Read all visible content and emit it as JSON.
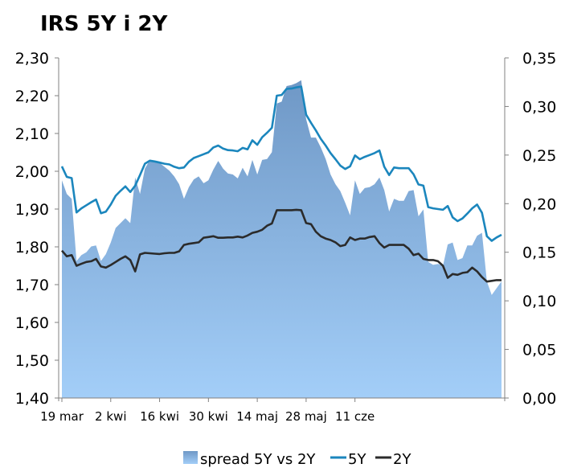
{
  "chart_data": {
    "type": "line",
    "title": "IRS 5Y i 2Y",
    "colors": {
      "spread_top": "#6f98c6",
      "spread_bottom": "#a3cef8",
      "s5y": "#1b86bd",
      "s2y": "#2b2b2b",
      "axis": "#808080"
    },
    "x_ticks": [
      {
        "i": 0,
        "label": "19 mar"
      },
      {
        "i": 10,
        "label": "2 kwi"
      },
      {
        "i": 20,
        "label": "16 kwi"
      },
      {
        "i": 30,
        "label": "30 kwi"
      },
      {
        "i": 40,
        "label": "14 maj"
      },
      {
        "i": 50,
        "label": "28 maj"
      },
      {
        "i": 60,
        "label": "11 cze"
      }
    ],
    "y_left": {
      "min": 1.4,
      "max": 2.3,
      "ticks": [
        "1,40",
        "1,50",
        "1,60",
        "1,70",
        "1,80",
        "1,90",
        "2,00",
        "2,10",
        "2,20",
        "2,30"
      ]
    },
    "y_right": {
      "min": 0.0,
      "max": 0.35,
      "ticks": [
        "0,00",
        "0,05",
        "0,10",
        "0,15",
        "0,20",
        "0,25",
        "0,30",
        "0,35"
      ]
    },
    "legend": [
      "spread 5Y vs 2Y",
      "5Y",
      "2Y"
    ],
    "series": [
      {
        "name": "5Y",
        "axis": "left",
        "values": [
          2.013,
          1.985,
          1.982,
          1.891,
          1.902,
          1.91,
          1.918,
          1.925,
          1.889,
          1.893,
          1.912,
          1.935,
          1.948,
          1.96,
          1.945,
          1.962,
          1.99,
          2.02,
          2.028,
          2.026,
          2.023,
          2.02,
          2.018,
          2.012,
          2.008,
          2.01,
          2.025,
          2.035,
          2.04,
          2.045,
          2.05,
          2.063,
          2.068,
          2.06,
          2.056,
          2.055,
          2.053,
          2.062,
          2.058,
          2.082,
          2.07,
          2.09,
          2.102,
          2.115,
          2.2,
          2.202,
          2.218,
          2.219,
          2.222,
          2.224,
          2.15,
          2.128,
          2.108,
          2.086,
          2.068,
          2.048,
          2.032,
          2.015,
          2.006,
          2.013,
          2.042,
          2.032,
          2.038,
          2.043,
          2.048,
          2.055,
          2.012,
          1.99,
          2.01,
          2.008,
          2.008,
          2.008,
          1.992,
          1.965,
          1.962,
          1.905,
          1.902,
          1.9,
          1.898,
          1.908,
          1.878,
          1.868,
          1.875,
          1.888,
          1.902,
          1.912,
          1.89,
          1.828,
          1.816,
          1.825,
          1.832
        ]
      },
      {
        "name": "2Y",
        "axis": "left",
        "values": [
          1.79,
          1.775,
          1.778,
          1.75,
          1.755,
          1.76,
          1.762,
          1.768,
          1.748,
          1.745,
          1.752,
          1.76,
          1.768,
          1.775,
          1.765,
          1.735,
          1.78,
          1.784,
          1.783,
          1.782,
          1.781,
          1.783,
          1.784,
          1.784,
          1.788,
          1.805,
          1.808,
          1.81,
          1.812,
          1.824,
          1.826,
          1.828,
          1.824,
          1.824,
          1.825,
          1.825,
          1.827,
          1.825,
          1.83,
          1.837,
          1.84,
          1.845,
          1.856,
          1.862,
          1.897,
          1.897,
          1.897,
          1.897,
          1.898,
          1.897,
          1.863,
          1.86,
          1.84,
          1.828,
          1.822,
          1.818,
          1.812,
          1.802,
          1.805,
          1.825,
          1.818,
          1.822,
          1.822,
          1.826,
          1.828,
          1.81,
          1.798,
          1.805,
          1.805,
          1.805,
          1.805,
          1.795,
          1.778,
          1.782,
          1.768,
          1.765,
          1.765,
          1.762,
          1.75,
          1.718,
          1.728,
          1.726,
          1.731,
          1.733,
          1.745,
          1.735,
          1.72,
          1.708,
          1.71,
          1.712,
          1.712
        ]
      },
      {
        "name": "spread 5Y vs 2Y",
        "axis": "right",
        "values": [
          0.224,
          0.21,
          0.205,
          0.141,
          0.147,
          0.15,
          0.156,
          0.157,
          0.141,
          0.148,
          0.16,
          0.175,
          0.18,
          0.185,
          0.18,
          0.227,
          0.21,
          0.236,
          0.245,
          0.244,
          0.242,
          0.238,
          0.234,
          0.228,
          0.22,
          0.205,
          0.217,
          0.225,
          0.228,
          0.221,
          0.224,
          0.235,
          0.244,
          0.236,
          0.231,
          0.23,
          0.226,
          0.237,
          0.228,
          0.245,
          0.23,
          0.245,
          0.246,
          0.253,
          0.303,
          0.305,
          0.321,
          0.322,
          0.324,
          0.327,
          0.287,
          0.268,
          0.268,
          0.258,
          0.246,
          0.23,
          0.22,
          0.213,
          0.201,
          0.188,
          0.224,
          0.21,
          0.216,
          0.217,
          0.22,
          0.227,
          0.214,
          0.192,
          0.205,
          0.203,
          0.203,
          0.213,
          0.214,
          0.187,
          0.194,
          0.14,
          0.137,
          0.138,
          0.136,
          0.158,
          0.16,
          0.142,
          0.144,
          0.157,
          0.157,
          0.167,
          0.17,
          0.12,
          0.106,
          0.113,
          0.12
        ]
      }
    ]
  }
}
